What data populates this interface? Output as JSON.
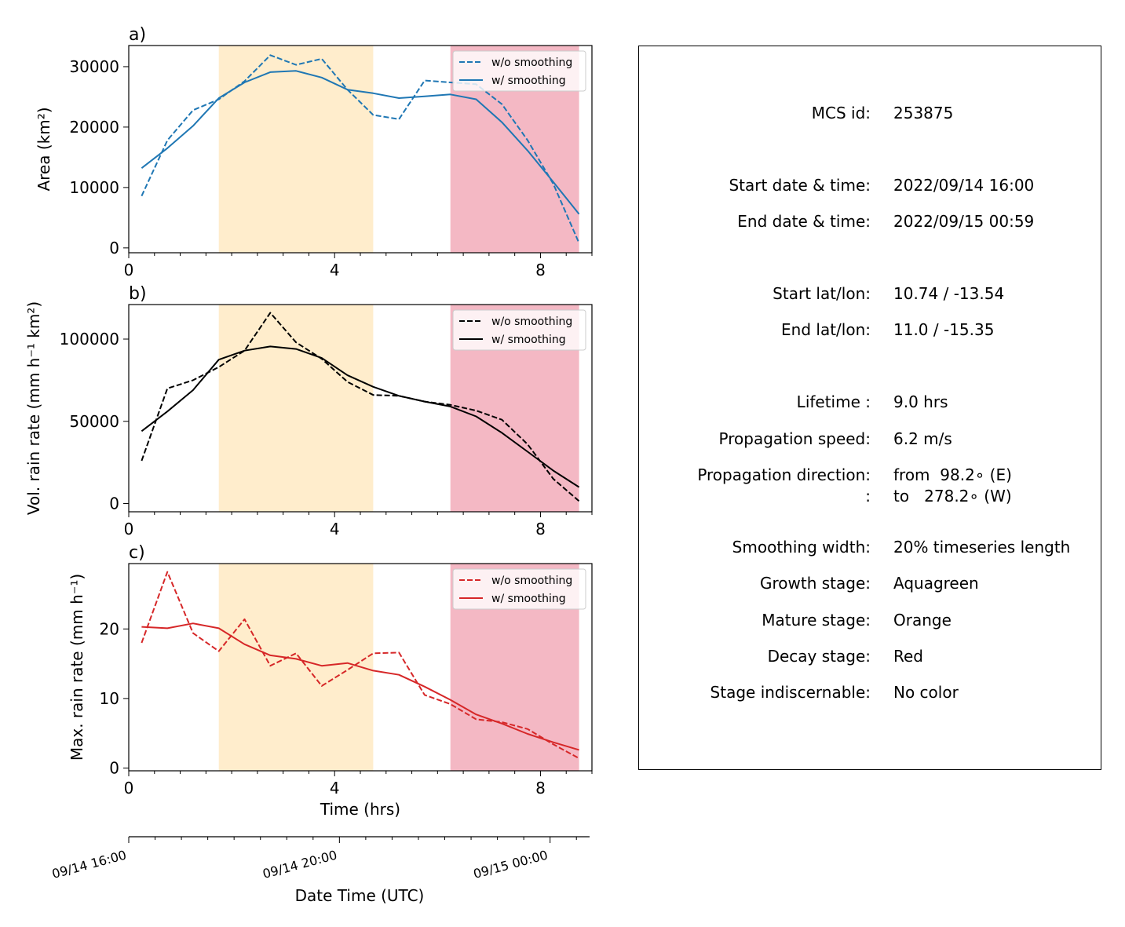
{
  "chart_data": [
    {
      "type": "line",
      "panel_label": "a)",
      "ylabel": "Area  (km²)",
      "xlim": [
        0,
        9
      ],
      "ylim": [
        -800,
        33500
      ],
      "xticks": [
        0,
        4,
        8
      ],
      "xtick_labels": [
        "0",
        "4",
        "8"
      ],
      "yticks": [
        0,
        10000,
        20000,
        30000
      ],
      "ytick_labels": [
        "0",
        "10000",
        "20000",
        "30000"
      ],
      "legend_position": "upper right",
      "color": "#1f77b4",
      "stage_shading": [
        {
          "stage": "Mature",
          "from": 1.75,
          "to": 4.75,
          "color": "#ffedcc"
        },
        {
          "stage": "Decay",
          "from": 6.25,
          "to": 8.75,
          "color": "#f4b8c4"
        }
      ],
      "x": [
        0.25,
        0.75,
        1.25,
        1.75,
        2.25,
        2.75,
        3.25,
        3.75,
        4.25,
        4.75,
        5.25,
        5.75,
        6.25,
        6.75,
        7.25,
        7.75,
        8.25,
        8.75
      ],
      "series": [
        {
          "name": "w/o smoothing",
          "style": "dashed",
          "values": [
            8600,
            17800,
            22800,
            24600,
            27600,
            31900,
            30300,
            31300,
            26200,
            22000,
            21300,
            27700,
            27400,
            27100,
            23800,
            17800,
            10600,
            800
          ]
        },
        {
          "name": "w/ smoothing",
          "style": "solid",
          "values": [
            13200,
            16500,
            20200,
            24800,
            27400,
            29100,
            29300,
            28200,
            26200,
            25600,
            24800,
            25100,
            25400,
            24600,
            20800,
            16100,
            10900,
            5600
          ]
        }
      ]
    },
    {
      "type": "line",
      "panel_label": "b)",
      "ylabel": "Vol. rain rate (mm h⁻¹ km²)",
      "xlim": [
        0,
        9
      ],
      "ylim": [
        -5000,
        121000
      ],
      "xticks": [
        0,
        4,
        8
      ],
      "xtick_labels": [
        "0",
        "4",
        "8"
      ],
      "yticks": [
        0,
        50000,
        100000
      ],
      "ytick_labels": [
        "0",
        "50000",
        "100000"
      ],
      "legend_position": "upper right",
      "color": "#000000",
      "stage_shading": [
        {
          "stage": "Mature",
          "from": 1.75,
          "to": 4.75,
          "color": "#ffedcc"
        },
        {
          "stage": "Decay",
          "from": 6.25,
          "to": 8.75,
          "color": "#f4b8c4"
        }
      ],
      "x": [
        0.25,
        0.75,
        1.25,
        1.75,
        2.25,
        2.75,
        3.25,
        3.75,
        4.25,
        4.75,
        5.25,
        5.75,
        6.25,
        6.75,
        7.25,
        7.75,
        8.25,
        8.75
      ],
      "series": [
        {
          "name": "w/o smoothing",
          "style": "dashed",
          "values": [
            26000,
            70000,
            75000,
            83000,
            93000,
            116000,
            98000,
            88000,
            74000,
            66000,
            65500,
            62000,
            60000,
            56500,
            51000,
            36000,
            15000,
            1500
          ]
        },
        {
          "name": "w/ smoothing",
          "style": "solid",
          "values": [
            44000,
            56000,
            69000,
            87500,
            93000,
            95500,
            94000,
            88500,
            78000,
            71000,
            65500,
            62000,
            59000,
            53000,
            43000,
            31500,
            20000,
            10000
          ]
        }
      ]
    },
    {
      "type": "line",
      "panel_label": "c)",
      "ylabel": "Max. rain rate  (mm h⁻¹)",
      "xlabel": "Time (hrs)",
      "xlim": [
        0,
        9
      ],
      "ylim": [
        -0.4,
        29.4
      ],
      "xticks": [
        0,
        4,
        8
      ],
      "xtick_labels": [
        "0",
        "4",
        "8"
      ],
      "yticks": [
        0,
        10,
        20
      ],
      "ytick_labels": [
        "0",
        "10",
        "20"
      ],
      "legend_position": "upper right",
      "color": "#d62728",
      "stage_shading": [
        {
          "stage": "Mature",
          "from": 1.75,
          "to": 4.75,
          "color": "#ffedcc"
        },
        {
          "stage": "Decay",
          "from": 6.25,
          "to": 8.75,
          "color": "#f4b8c4"
        }
      ],
      "x": [
        0.25,
        0.75,
        1.25,
        1.75,
        2.25,
        2.75,
        3.25,
        3.75,
        4.25,
        4.75,
        5.25,
        5.75,
        6.25,
        6.75,
        7.25,
        7.75,
        8.25,
        8.75
      ],
      "series": [
        {
          "name": "w/o smoothing",
          "style": "dashed",
          "values": [
            18.0,
            28.2,
            19.4,
            16.8,
            21.4,
            14.7,
            16.5,
            11.8,
            14.1,
            16.5,
            16.6,
            10.5,
            9.2,
            7.0,
            6.6,
            5.6,
            3.4,
            1.4
          ]
        },
        {
          "name": "w/ smoothing",
          "style": "solid",
          "values": [
            20.3,
            20.1,
            20.8,
            20.1,
            17.8,
            16.2,
            15.7,
            14.7,
            15.1,
            14.0,
            13.4,
            11.7,
            9.8,
            7.7,
            6.4,
            4.9,
            3.7,
            2.6
          ]
        }
      ]
    }
  ],
  "datetime_axis": {
    "xlabel": "Date Time (UTC)",
    "tick_labels": [
      "09/14 16:00",
      "09/14 20:00",
      "09/15 00:00"
    ],
    "tick_hours": [
      0,
      4,
      8
    ],
    "minor_tick_hours": [
      0.5,
      1,
      1.5,
      2,
      2.5,
      3,
      3.5,
      4.5,
      5,
      5.5,
      6,
      6.5,
      7,
      7.5,
      8.5
    ],
    "range_hours": [
      0,
      8.75
    ]
  },
  "info": {
    "rows": [
      {
        "key": "MCS id:",
        "value": "253875"
      },
      {
        "key": "Start date & time:",
        "value": "2022/09/14 16:00"
      },
      {
        "key": "End date & time:",
        "value": "2022/09/15 00:59"
      },
      {
        "key": "Start lat/lon:",
        "value": "10.74 / -13.54"
      },
      {
        "key": "End lat/lon:",
        "value": "11.0 / -15.35"
      },
      {
        "key": "Lifetime :",
        "value": "9.0 hrs"
      },
      {
        "key": "Propagation speed:",
        "value": "6.2 m/s"
      },
      {
        "key": "Propagation direction:",
        "value": "from  98.2∘ (E)"
      },
      {
        "key": ":",
        "value": "to   278.2∘ (W)"
      },
      {
        "key": "Smoothing width:",
        "value": "20% timeseries length"
      },
      {
        "key": "Growth stage:",
        "value": "Aquagreen"
      },
      {
        "key": "Mature stage:",
        "value": "Orange"
      },
      {
        "key": "Decay stage:",
        "value": "Red"
      },
      {
        "key": "Stage indiscernable:",
        "value": "No color"
      }
    ]
  }
}
